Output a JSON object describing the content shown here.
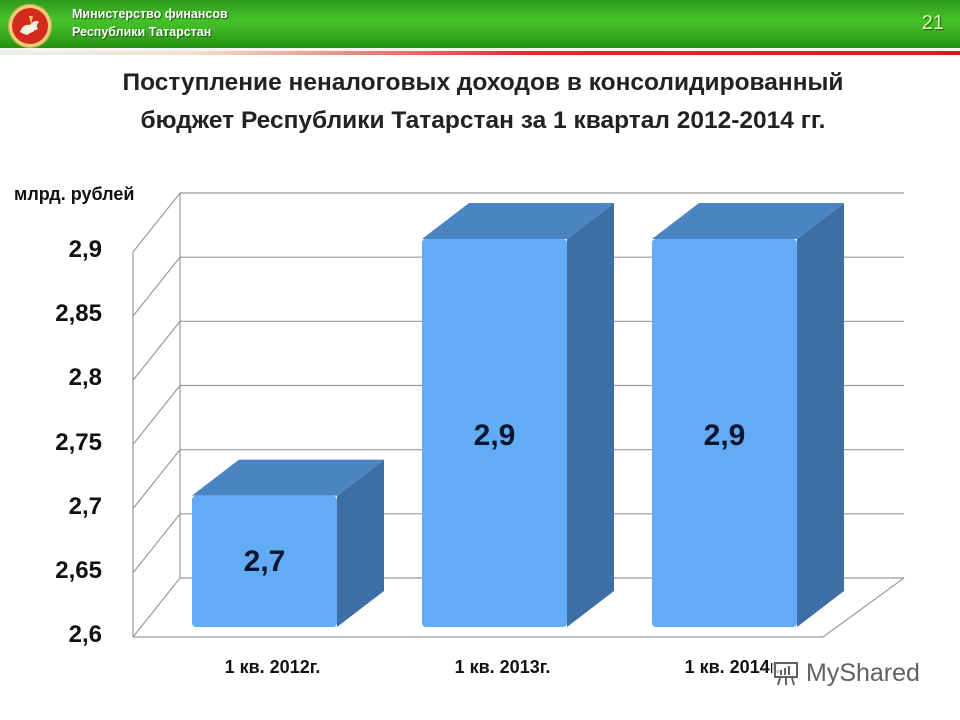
{
  "header": {
    "org_line1": "Министерство финансов",
    "org_line2": "Республики Татарстан",
    "slide_number": "21",
    "logo_icon": "tatarstan-emblem-icon",
    "colors": {
      "green": "#3fb824",
      "red_stripe": "#cc1f1f"
    }
  },
  "title": {
    "line1": "Поступление неналоговых доходов в  консолидированный",
    "line2": "бюджет Республики Татарстан за 1 квартал 2012-2014 гг."
  },
  "watermark": {
    "text": "MyShared",
    "icon": "presentation-board-icon"
  },
  "chart_data": {
    "type": "bar",
    "style": "3d-column",
    "title": "Поступление неналоговых доходов в консолидированный бюджет Республики Татарстан за 1 квартал 2012-2014 гг.",
    "xlabel": "",
    "ylabel": "млрд. рублей",
    "categories": [
      "1 кв. 2012г.",
      "1 кв. 2013г.",
      "1 кв. 2014г."
    ],
    "values": [
      2.7,
      2.9,
      2.9
    ],
    "data_labels": [
      "2,7",
      "2,9",
      "2,9"
    ],
    "ylim": [
      2.6,
      2.9
    ],
    "y_ticks": [
      "2,6",
      "2,65",
      "2,7",
      "2,75",
      "2,8",
      "2,85",
      "2,9"
    ],
    "grid": true,
    "legend": "none",
    "colors": {
      "bar_front": "#62acf6",
      "bar_top": "#4a84c2",
      "bar_side": "#3d6fa6"
    }
  }
}
